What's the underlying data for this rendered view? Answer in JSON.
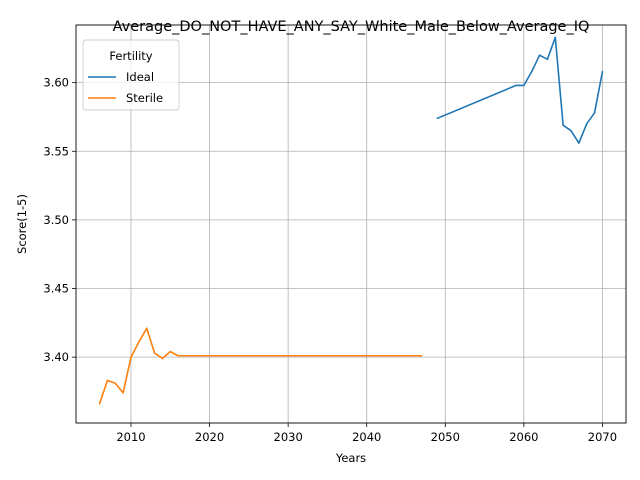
{
  "chart_data": {
    "type": "line",
    "title": "Average_DO_NOT_HAVE_ANY_SAY_White_Male_Below_Average_IQ",
    "xlabel": "Years",
    "ylabel": "Score(1-5)",
    "xlim": [
      2003,
      2073
    ],
    "ylim": [
      3.352,
      3.642
    ],
    "xticks": [
      2010,
      2020,
      2030,
      2040,
      2050,
      2060,
      2070
    ],
    "yticks": [
      3.4,
      3.45,
      3.5,
      3.55,
      3.6
    ],
    "ytick_labels": [
      "3.40",
      "3.45",
      "3.50",
      "3.55",
      "3.60"
    ],
    "grid": true,
    "legend": {
      "title": "Fertility",
      "placement": "top-left"
    },
    "series": [
      {
        "name": "Ideal",
        "color": "#1f77b4",
        "x": [
          2049,
          2059,
          2060,
          2061,
          2062,
          2063,
          2064,
          2065,
          2066,
          2067,
          2068,
          2069,
          2070
        ],
        "y": [
          3.574,
          3.598,
          3.598,
          3.608,
          3.62,
          3.617,
          3.633,
          3.569,
          3.565,
          3.556,
          3.57,
          3.578,
          3.608
        ]
      },
      {
        "name": "Sterile",
        "color": "#ff7f0e",
        "x": [
          2006,
          2007,
          2008,
          2009,
          2010,
          2011,
          2012,
          2013,
          2014,
          2015,
          2016,
          2017,
          2020,
          2030,
          2040,
          2047
        ],
        "y": [
          3.366,
          3.383,
          3.381,
          3.374,
          3.4,
          3.411,
          3.421,
          3.403,
          3.399,
          3.404,
          3.401,
          3.401,
          3.401,
          3.401,
          3.401,
          3.401
        ]
      }
    ]
  }
}
